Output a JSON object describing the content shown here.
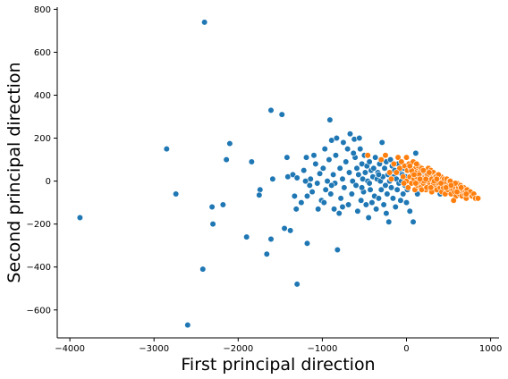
{
  "chart_data": {
    "type": "scatter",
    "xlabel": "First principal direction",
    "ylabel": "Second principal direction",
    "xlim": [
      -4150,
      1100
    ],
    "ylim": [
      -730,
      810
    ],
    "xticks": [
      -4000,
      -3000,
      -2000,
      -1000,
      0,
      1000
    ],
    "yticks": [
      -600,
      -400,
      -200,
      0,
      200,
      400,
      600,
      800
    ],
    "xtick_labels": [
      "−4000",
      "−3000",
      "−2000",
      "−1000",
      "0",
      "1000"
    ],
    "ytick_labels": [
      "−600",
      "−400",
      "−200",
      "0",
      "200",
      "400",
      "600",
      "800"
    ],
    "grid": false,
    "legend": "none",
    "series": [
      {
        "color": "#1f77b4",
        "points": [
          [
            -3880,
            -170
          ],
          [
            -2850,
            150
          ],
          [
            -2740,
            -60
          ],
          [
            -2400,
            740
          ],
          [
            -2420,
            -410
          ],
          [
            -2310,
            -120
          ],
          [
            -2300,
            -200
          ],
          [
            -2180,
            -110
          ],
          [
            -2140,
            100
          ],
          [
            -2100,
            175
          ],
          [
            -1900,
            -260
          ],
          [
            -1840,
            90
          ],
          [
            -1740,
            -40
          ],
          [
            -1750,
            -65
          ],
          [
            -1660,
            -340
          ],
          [
            -1610,
            330
          ],
          [
            -1610,
            -270
          ],
          [
            -1590,
            10
          ],
          [
            -1480,
            310
          ],
          [
            -1450,
            -220
          ],
          [
            -1380,
            -230
          ],
          [
            -1300,
            -480
          ],
          [
            -1180,
            -290
          ],
          [
            -2600,
            -670
          ],
          [
            -1420,
            110
          ],
          [
            -1410,
            20
          ],
          [
            -1350,
            30
          ],
          [
            -1300,
            15
          ],
          [
            -1330,
            -70
          ],
          [
            -1310,
            -130
          ],
          [
            -1250,
            -100
          ],
          [
            -1220,
            50
          ],
          [
            -1190,
            110
          ],
          [
            -1180,
            -70
          ],
          [
            -1150,
            -20
          ],
          [
            -1140,
            10
          ],
          [
            -1100,
            120
          ],
          [
            -1080,
            80
          ],
          [
            -1060,
            -10
          ],
          [
            -1050,
            -130
          ],
          [
            -1030,
            35
          ],
          [
            -1010,
            -90
          ],
          [
            -990,
            60
          ],
          [
            -970,
            150
          ],
          [
            -960,
            -40
          ],
          [
            -940,
            0
          ],
          [
            -920,
            100
          ],
          [
            -910,
            285
          ],
          [
            -900,
            -60
          ],
          [
            -890,
            190
          ],
          [
            -870,
            30
          ],
          [
            -860,
            -130
          ],
          [
            -850,
            -10
          ],
          [
            -840,
            120
          ],
          [
            -830,
            200
          ],
          [
            -820,
            -320
          ],
          [
            -800,
            -150
          ],
          [
            -790,
            60
          ],
          [
            -780,
            -80
          ],
          [
            -760,
            10
          ],
          [
            -750,
            180
          ],
          [
            -740,
            -30
          ],
          [
            -720,
            90
          ],
          [
            -700,
            150
          ],
          [
            -690,
            -110
          ],
          [
            -680,
            40
          ],
          [
            -670,
            220
          ],
          [
            -650,
            -60
          ],
          [
            -640,
            0
          ],
          [
            -620,
            195
          ],
          [
            -610,
            110
          ],
          [
            -600,
            -20
          ],
          [
            -590,
            60
          ],
          [
            -580,
            -140
          ],
          [
            -570,
            30
          ],
          [
            -560,
            200
          ],
          [
            -550,
            150
          ],
          [
            -540,
            -90
          ],
          [
            -530,
            80
          ],
          [
            -520,
            10
          ],
          [
            -510,
            -50
          ],
          [
            -500,
            120
          ],
          [
            -490,
            40
          ],
          [
            -480,
            -110
          ],
          [
            -470,
            70
          ],
          [
            -460,
            0
          ],
          [
            -450,
            -170
          ],
          [
            -440,
            90
          ],
          [
            -430,
            -40
          ],
          [
            -420,
            50
          ],
          [
            -410,
            -100
          ],
          [
            -400,
            20
          ],
          [
            -390,
            60
          ],
          [
            -380,
            -70
          ],
          [
            -370,
            110
          ],
          [
            -360,
            -130
          ],
          [
            -350,
            10
          ],
          [
            -340,
            40
          ],
          [
            -330,
            -80
          ],
          [
            -320,
            80
          ],
          [
            -310,
            0
          ],
          [
            -300,
            -40
          ],
          [
            -290,
            180
          ],
          [
            -280,
            20
          ],
          [
            -270,
            -110
          ],
          [
            -260,
            60
          ],
          [
            -250,
            -20
          ],
          [
            -240,
            90
          ],
          [
            -230,
            -60
          ],
          [
            -220,
            30
          ],
          [
            -210,
            -190
          ],
          [
            -200,
            0
          ],
          [
            -190,
            100
          ],
          [
            -180,
            -30
          ],
          [
            -170,
            70
          ],
          [
            -160,
            -80
          ],
          [
            -150,
            20
          ],
          [
            -140,
            50
          ],
          [
            -130,
            -120
          ],
          [
            -120,
            10
          ],
          [
            -110,
            -40
          ],
          [
            -100,
            80
          ],
          [
            -90,
            -10
          ],
          [
            -80,
            40
          ],
          [
            -70,
            -90
          ],
          [
            -60,
            0
          ],
          [
            -50,
            30
          ],
          [
            -40,
            -60
          ],
          [
            -30,
            60
          ],
          [
            -20,
            -20
          ],
          [
            -10,
            20
          ],
          [
            0,
            -100
          ],
          [
            10,
            -40
          ],
          [
            20,
            50
          ],
          [
            40,
            -140
          ],
          [
            60,
            -10
          ],
          [
            80,
            -190
          ],
          [
            100,
            30
          ],
          [
            110,
            130
          ],
          [
            130,
            -60
          ],
          [
            150,
            10
          ],
          [
            180,
            -30
          ],
          [
            210,
            40
          ],
          [
            250,
            0
          ],
          [
            300,
            20
          ],
          [
            350,
            -20
          ],
          [
            400,
            -60
          ],
          [
            450,
            10
          ],
          [
            500,
            0
          ],
          [
            550,
            -30
          ],
          [
            -1200,
            0
          ],
          [
            -1120,
            -50
          ],
          [
            -980,
            -100
          ],
          [
            -890,
            -20
          ],
          [
            -760,
            -120
          ],
          [
            -630,
            130
          ],
          [
            -530,
            -30
          ],
          [
            -440,
            -10
          ],
          [
            -330,
            30
          ],
          [
            -240,
            -150
          ]
        ]
      },
      {
        "color": "#ff7f0e",
        "points": [
          [
            -460,
            120
          ],
          [
            -300,
            100
          ],
          [
            -250,
            120
          ],
          [
            -200,
            40
          ],
          [
            -150,
            80
          ],
          [
            -100,
            110
          ],
          [
            -80,
            60
          ],
          [
            -60,
            90
          ],
          [
            -40,
            20
          ],
          [
            -20,
            70
          ],
          [
            0,
            0
          ],
          [
            0,
            110
          ],
          [
            10,
            50
          ],
          [
            20,
            -30
          ],
          [
            30,
            80
          ],
          [
            40,
            20
          ],
          [
            50,
            60
          ],
          [
            60,
            -10
          ],
          [
            70,
            40
          ],
          [
            80,
            90
          ],
          [
            90,
            10
          ],
          [
            100,
            -40
          ],
          [
            110,
            60
          ],
          [
            120,
            20
          ],
          [
            130,
            -20
          ],
          [
            140,
            70
          ],
          [
            150,
            0
          ],
          [
            160,
            40
          ],
          [
            170,
            -30
          ],
          [
            180,
            60
          ],
          [
            190,
            10
          ],
          [
            200,
            -10
          ],
          [
            210,
            50
          ],
          [
            220,
            20
          ],
          [
            230,
            -40
          ],
          [
            240,
            30
          ],
          [
            250,
            0
          ],
          [
            260,
            60
          ],
          [
            270,
            -20
          ],
          [
            280,
            20
          ],
          [
            290,
            50
          ],
          [
            300,
            -50
          ],
          [
            310,
            10
          ],
          [
            320,
            40
          ],
          [
            330,
            -20
          ],
          [
            340,
            20
          ],
          [
            350,
            0
          ],
          [
            360,
            -40
          ],
          [
            370,
            30
          ],
          [
            380,
            -10
          ],
          [
            390,
            10
          ],
          [
            400,
            -30
          ],
          [
            410,
            20
          ],
          [
            420,
            -50
          ],
          [
            430,
            0
          ],
          [
            440,
            -20
          ],
          [
            450,
            10
          ],
          [
            460,
            -60
          ],
          [
            470,
            -10
          ],
          [
            480,
            10
          ],
          [
            490,
            -40
          ],
          [
            500,
            -20
          ],
          [
            510,
            0
          ],
          [
            520,
            -30
          ],
          [
            530,
            -60
          ],
          [
            540,
            -10
          ],
          [
            550,
            -40
          ],
          [
            560,
            -20
          ],
          [
            570,
            -50
          ],
          [
            580,
            -30
          ],
          [
            590,
            -70
          ],
          [
            600,
            -10
          ],
          [
            610,
            -40
          ],
          [
            620,
            -30
          ],
          [
            630,
            -60
          ],
          [
            640,
            -20
          ],
          [
            650,
            -50
          ],
          [
            660,
            -70
          ],
          [
            670,
            -40
          ],
          [
            680,
            -30
          ],
          [
            690,
            -60
          ],
          [
            700,
            -50
          ],
          [
            710,
            -80
          ],
          [
            720,
            -40
          ],
          [
            740,
            -60
          ],
          [
            760,
            -50
          ],
          [
            780,
            -70
          ],
          [
            800,
            -60
          ],
          [
            820,
            -80
          ],
          [
            850,
            -80
          ],
          [
            100,
            40
          ],
          [
            150,
            30
          ],
          [
            200,
            50
          ],
          [
            250,
            30
          ],
          [
            300,
            10
          ],
          [
            350,
            20
          ],
          [
            60,
            50
          ],
          [
            120,
            80
          ],
          [
            180,
            -40
          ],
          [
            240,
            -30
          ],
          [
            320,
            -10
          ],
          [
            380,
            30
          ],
          [
            440,
            -30
          ],
          [
            520,
            0
          ],
          [
            580,
            -10
          ],
          [
            40,
            70
          ],
          [
            110,
            -10
          ],
          [
            210,
            0
          ],
          [
            270,
            40
          ],
          [
            330,
            0
          ],
          [
            -120,
            40
          ],
          [
            -180,
            10
          ],
          [
            -30,
            -10
          ],
          [
            90,
            30
          ],
          [
            160,
            10
          ],
          [
            230,
            10
          ],
          [
            290,
            -30
          ],
          [
            360,
            10
          ],
          [
            410,
            -10
          ],
          [
            470,
            -30
          ],
          [
            530,
            -20
          ],
          [
            600,
            -50
          ],
          [
            650,
            -30
          ],
          [
            710,
            -60
          ],
          [
            560,
            -90
          ]
        ]
      }
    ]
  }
}
